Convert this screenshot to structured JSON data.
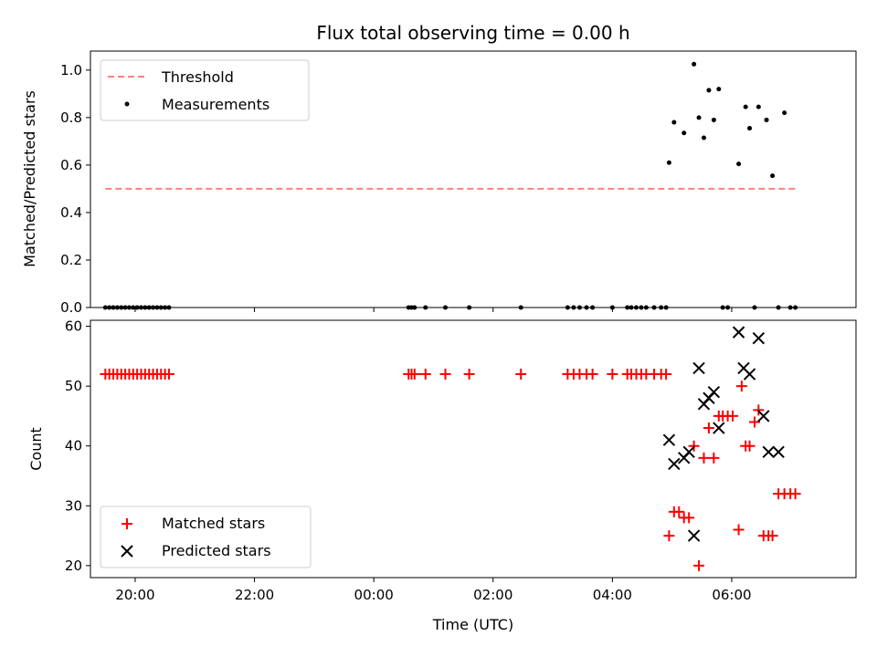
{
  "chart_data": [
    {
      "type": "scatter",
      "title": "Flux total observing time = 0.00 h",
      "ylabel": "Matched/Predicted stars",
      "xlabel": "",
      "ylim": [
        0,
        1.08
      ],
      "yticks": [
        "0.0",
        "0.2",
        "0.4",
        "0.6",
        "0.8",
        "1.0"
      ],
      "grid": false,
      "legend": "top-left",
      "threshold": {
        "name": "Threshold",
        "value": 0.5,
        "x_range": [
          "19:30",
          "07:05"
        ],
        "color": "#ff8080"
      },
      "measurements": {
        "name": "Measurements",
        "color": "#000000",
        "x": [
          "19:30",
          "19:34",
          "19:38",
          "19:42",
          "19:46",
          "19:50",
          "19:54",
          "19:58",
          "20:02",
          "20:06",
          "20:10",
          "20:14",
          "20:18",
          "20:22",
          "20:26",
          "20:30",
          "20:34",
          "00:35",
          "00:38",
          "00:41",
          "00:52",
          "01:12",
          "01:36",
          "02:28",
          "03:15",
          "03:21",
          "03:27",
          "03:34",
          "03:40",
          "04:00",
          "04:15",
          "04:19",
          "04:24",
          "04:29",
          "04:34",
          "04:42",
          "04:49",
          "04:54",
          "04:57",
          "05:02",
          "05:12",
          "05:22",
          "05:27",
          "05:32",
          "05:37",
          "05:42",
          "05:47",
          "05:51",
          "05:56",
          "06:07",
          "06:14",
          "06:18",
          "06:23",
          "06:27",
          "06:35",
          "06:41",
          "06:47",
          "06:53",
          "06:59",
          "07:04"
        ],
        "y": [
          0,
          0,
          0,
          0,
          0,
          0,
          0,
          0,
          0,
          0,
          0,
          0,
          0,
          0,
          0,
          0,
          0,
          0,
          0,
          0,
          0,
          0,
          0,
          0,
          0,
          0,
          0,
          0,
          0,
          0,
          0,
          0,
          0,
          0,
          0,
          0,
          0,
          0,
          0.61,
          0.78,
          0.735,
          1.025,
          0.8,
          0.715,
          0.915,
          0.79,
          0.92,
          0,
          0,
          0.605,
          0.845,
          0.755,
          0,
          0.845,
          0.79,
          0.555,
          0,
          0.82,
          0,
          0
        ]
      }
    },
    {
      "type": "scatter",
      "title": "",
      "ylabel": "Count",
      "xlabel": "Time (UTC)",
      "ylim": [
        18,
        61
      ],
      "yticks": [
        "20",
        "30",
        "40",
        "50",
        "60"
      ],
      "xticks": [
        "20:00",
        "22:00",
        "00:00",
        "02:00",
        "04:00",
        "06:00"
      ],
      "x_domain": [
        "19:15",
        "08:05"
      ],
      "grid": false,
      "legend": "bottom-left",
      "series": [
        {
          "name": "Matched stars",
          "marker": "plus",
          "color": "#ff0000",
          "x": [
            "19:30",
            "19:34",
            "19:38",
            "19:42",
            "19:46",
            "19:50",
            "19:54",
            "19:58",
            "20:02",
            "20:06",
            "20:10",
            "20:14",
            "20:18",
            "20:22",
            "20:26",
            "20:30",
            "20:34",
            "00:35",
            "00:38",
            "00:41",
            "00:52",
            "01:12",
            "01:36",
            "02:28",
            "03:15",
            "03:21",
            "03:27",
            "03:34",
            "03:40",
            "04:00",
            "04:15",
            "04:19",
            "04:24",
            "04:29",
            "04:34",
            "04:42",
            "04:49",
            "04:54",
            "04:57",
            "05:02",
            "05:07",
            "05:12",
            "05:17",
            "05:22",
            "05:27",
            "05:32",
            "05:37",
            "05:42",
            "05:47",
            "05:51",
            "05:56",
            "06:01",
            "06:07",
            "06:10",
            "06:14",
            "06:18",
            "06:23",
            "06:27",
            "06:32",
            "06:37",
            "06:41",
            "06:47",
            "06:53",
            "06:59",
            "07:04"
          ],
          "y": [
            52,
            52,
            52,
            52,
            52,
            52,
            52,
            52,
            52,
            52,
            52,
            52,
            52,
            52,
            52,
            52,
            52,
            52,
            52,
            52,
            52,
            52,
            52,
            52,
            52,
            52,
            52,
            52,
            52,
            52,
            52,
            52,
            52,
            52,
            52,
            52,
            52,
            52,
            25,
            29,
            29,
            28,
            28,
            40,
            20,
            38,
            43,
            38,
            45,
            45,
            45,
            45,
            26,
            50,
            40,
            40,
            44,
            46,
            25,
            25,
            25,
            32,
            32,
            32,
            32
          ]
        },
        {
          "name": "Predicted stars",
          "marker": "x",
          "color": "#000000",
          "x": [
            "04:57",
            "05:02",
            "05:12",
            "05:17",
            "05:22",
            "05:27",
            "05:32",
            "05:37",
            "05:42",
            "05:47",
            "06:07",
            "06:12",
            "06:18",
            "06:27",
            "06:32",
            "06:37",
            "06:47"
          ],
          "y": [
            41,
            37,
            38,
            39,
            25,
            53,
            47,
            48,
            49,
            43,
            59,
            53,
            52,
            58,
            45,
            39,
            39
          ]
        }
      ]
    }
  ]
}
